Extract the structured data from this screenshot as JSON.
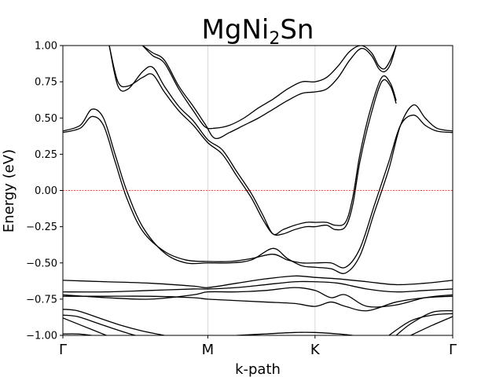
{
  "chart_data": {
    "type": "line",
    "title": "MgNi",
    "title_sub": "2",
    "title_tail": "Sn",
    "xlabel": "k-path",
    "ylabel": "Energy (eV)",
    "ylim": [
      -1.0,
      1.0
    ],
    "yticks": [
      "−1.00",
      "−0.75",
      "−0.50",
      "−0.25",
      "0.00",
      "0.25",
      "0.50",
      "0.75",
      "1.00"
    ],
    "ytick_values": [
      -1.0,
      -0.75,
      -0.5,
      -0.25,
      0.0,
      0.25,
      0.5,
      0.75,
      1.0
    ],
    "xticks": [
      "Γ",
      "M",
      "K",
      "Γ"
    ],
    "xtick_positions": [
      0.0,
      1.0,
      1.74,
      2.69
    ],
    "xlim": [
      0.0,
      2.69
    ],
    "fermi_level": 0.0,
    "fermi_color": "#ff0000",
    "line_color": "#000000",
    "grid": "vertical lines at high-symmetry points",
    "series": [
      {
        "x": [
          0.0,
          0.12,
          0.2,
          0.28,
          0.36,
          0.44,
          0.55,
          0.7,
          0.85,
          1.0,
          1.15,
          1.3,
          1.45,
          1.55,
          1.65,
          1.74,
          1.85,
          1.95,
          2.05,
          2.15,
          2.25,
          2.33,
          2.42,
          2.5,
          2.58,
          2.69
        ],
        "y": [
          0.4,
          0.43,
          0.51,
          0.45,
          0.2,
          -0.05,
          -0.28,
          -0.42,
          -0.48,
          -0.49,
          -0.49,
          -0.47,
          -0.44,
          -0.48,
          -0.5,
          -0.5,
          -0.5,
          -0.53,
          -0.4,
          -0.1,
          0.2,
          0.45,
          0.52,
          0.45,
          0.41,
          0.4
        ]
      },
      {
        "x": [
          0.0,
          0.12,
          0.2,
          0.28,
          0.36,
          0.44,
          0.55,
          0.7,
          0.85,
          1.0,
          1.15,
          1.3,
          1.45,
          1.55,
          1.65,
          1.74,
          1.85,
          1.95,
          2.05,
          2.15,
          2.25,
          2.33,
          2.42,
          2.5,
          2.58,
          2.69
        ],
        "y": [
          0.41,
          0.45,
          0.56,
          0.5,
          0.25,
          0.0,
          -0.25,
          -0.43,
          -0.5,
          -0.5,
          -0.5,
          -0.48,
          -0.4,
          -0.47,
          -0.52,
          -0.53,
          -0.54,
          -0.57,
          -0.45,
          -0.15,
          0.15,
          0.45,
          0.59,
          0.5,
          0.43,
          0.41
        ]
      },
      {
        "x": [
          0.32,
          0.38,
          0.45,
          0.55,
          0.62,
          0.7,
          0.8,
          0.9,
          1.0,
          1.1,
          1.2,
          1.3,
          1.38,
          1.45,
          1.52,
          1.6,
          1.68,
          1.74,
          1.82,
          1.88,
          1.95,
          2.0,
          2.05,
          2.12,
          2.2,
          2.26,
          2.3
        ],
        "y": [
          1.0,
          0.75,
          0.72,
          0.78,
          0.8,
          0.68,
          0.55,
          0.45,
          0.33,
          0.25,
          0.1,
          -0.05,
          -0.2,
          -0.3,
          -0.3,
          -0.27,
          -0.25,
          -0.25,
          -0.24,
          -0.27,
          -0.25,
          -0.1,
          0.2,
          0.5,
          0.75,
          0.72,
          0.6
        ]
      },
      {
        "x": [
          0.32,
          0.38,
          0.45,
          0.55,
          0.62,
          0.7,
          0.8,
          0.9,
          1.0,
          1.1,
          1.2,
          1.3,
          1.38,
          1.45,
          1.52,
          1.6,
          1.68,
          1.74,
          1.82,
          1.88,
          1.95,
          2.0,
          2.05,
          2.12,
          2.2,
          2.26,
          2.3
        ],
        "y": [
          1.0,
          0.72,
          0.7,
          0.82,
          0.85,
          0.72,
          0.58,
          0.48,
          0.35,
          0.28,
          0.13,
          -0.02,
          -0.17,
          -0.3,
          -0.27,
          -0.24,
          -0.22,
          -0.22,
          -0.22,
          -0.24,
          -0.22,
          -0.05,
          0.25,
          0.55,
          0.78,
          0.74,
          0.62
        ]
      },
      {
        "x": [
          0.55,
          0.62,
          0.7,
          0.8,
          0.9,
          0.98,
          1.05,
          1.15,
          1.25,
          1.35,
          1.45,
          1.55,
          1.65,
          1.74,
          1.82,
          1.9,
          1.98,
          2.06,
          2.13,
          2.18,
          2.22,
          2.26,
          2.3
        ],
        "y": [
          1.0,
          0.93,
          0.88,
          0.7,
          0.55,
          0.44,
          0.43,
          0.45,
          0.5,
          0.57,
          0.63,
          0.7,
          0.75,
          0.75,
          0.78,
          0.86,
          0.96,
          1.0,
          0.95,
          0.86,
          0.84,
          0.9,
          1.0
        ]
      },
      {
        "x": [
          0.55,
          0.62,
          0.7,
          0.8,
          0.9,
          0.98,
          1.05,
          1.15,
          1.25,
          1.35,
          1.45,
          1.55,
          1.65,
          1.74,
          1.82,
          1.9,
          1.98,
          2.06,
          2.13,
          2.18,
          2.22,
          2.26,
          2.3
        ],
        "y": [
          1.0,
          0.95,
          0.9,
          0.72,
          0.58,
          0.46,
          0.36,
          0.4,
          0.45,
          0.5,
          0.56,
          0.62,
          0.67,
          0.68,
          0.7,
          0.78,
          0.9,
          0.98,
          0.93,
          0.84,
          0.82,
          0.87,
          1.0
        ]
      },
      {
        "x": [
          0.0,
          0.3,
          0.6,
          0.9,
          1.0,
          1.2,
          1.4,
          1.6,
          1.74,
          1.9,
          2.1,
          2.3,
          2.5,
          2.69
        ],
        "y": [
          -0.62,
          -0.63,
          -0.64,
          -0.66,
          -0.67,
          -0.64,
          -0.61,
          -0.59,
          -0.6,
          -0.61,
          -0.63,
          -0.65,
          -0.64,
          -0.62
        ]
      },
      {
        "x": [
          0.0,
          0.3,
          0.6,
          0.9,
          1.0,
          1.2,
          1.4,
          1.6,
          1.74,
          1.9,
          2.1,
          2.3,
          2.5,
          2.69
        ],
        "y": [
          -0.7,
          -0.7,
          -0.69,
          -0.68,
          -0.68,
          -0.67,
          -0.65,
          -0.63,
          -0.63,
          -0.64,
          -0.68,
          -0.7,
          -0.69,
          -0.68
        ]
      },
      {
        "x": [
          0.0,
          0.3,
          0.6,
          0.9,
          1.0,
          1.2,
          1.4,
          1.6,
          1.74,
          1.85,
          1.95,
          2.1,
          2.3,
          2.5,
          2.69
        ],
        "y": [
          -0.72,
          -0.74,
          -0.75,
          -0.72,
          -0.7,
          -0.7,
          -0.69,
          -0.67,
          -0.69,
          -0.74,
          -0.72,
          -0.8,
          -0.79,
          -0.74,
          -0.72
        ]
      },
      {
        "x": [
          0.0,
          0.3,
          0.6,
          0.9,
          1.0,
          1.2,
          1.4,
          1.6,
          1.74,
          1.85,
          1.95,
          2.1,
          2.3,
          2.5,
          2.69
        ],
        "y": [
          -0.73,
          -0.73,
          -0.73,
          -0.74,
          -0.75,
          -0.76,
          -0.77,
          -0.78,
          -0.8,
          -0.77,
          -0.8,
          -0.83,
          -0.77,
          -0.74,
          -0.73
        ]
      },
      {
        "x": [
          0.0,
          0.1,
          0.25,
          0.4,
          0.55,
          0.7
        ],
        "y": [
          -0.82,
          -0.83,
          -0.88,
          -0.93,
          -0.97,
          -1.0
        ]
      },
      {
        "x": [
          0.0,
          0.1,
          0.25,
          0.4,
          0.5,
          0.6
        ],
        "y": [
          -0.86,
          -0.87,
          -0.92,
          -0.97,
          -1.0,
          -1.02
        ]
      },
      {
        "x": [
          0.0,
          0.15,
          0.3
        ],
        "y": [
          -0.88,
          -0.94,
          -1.0
        ]
      },
      {
        "x": [
          2.3,
          2.4,
          2.55,
          2.69
        ],
        "y": [
          -1.0,
          -0.92,
          -0.84,
          -0.83
        ]
      },
      {
        "x": [
          2.25,
          2.4,
          2.55,
          2.69
        ],
        "y": [
          -1.0,
          -0.9,
          -0.86,
          -0.85
        ]
      },
      {
        "x": [
          2.4,
          2.55,
          2.69
        ],
        "y": [
          -1.0,
          -0.93,
          -0.87
        ]
      },
      {
        "x": [
          1.2,
          1.4,
          1.6,
          1.74,
          1.9,
          2.0
        ],
        "y": [
          -1.0,
          -0.99,
          -0.98,
          -0.98,
          -0.99,
          -1.0
        ]
      },
      {
        "x": [
          0.0,
          0.1,
          0.2
        ],
        "y": [
          -0.99,
          -0.99,
          -1.0
        ]
      }
    ]
  }
}
